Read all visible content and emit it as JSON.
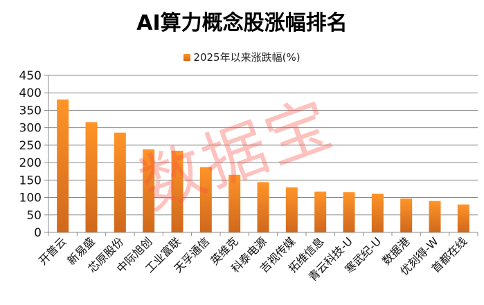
{
  "chart_data": {
    "type": "bar",
    "title": "AI算力概念股涨幅排名",
    "legend": "2025年以来涨跌幅(%)",
    "legend_position": "top",
    "categories": [
      "开普云",
      "新易盛",
      "芯原股份",
      "中际旭创",
      "工业富联",
      "天孚通信",
      "英维克",
      "科泰电源",
      "吉视传媒",
      "拓维信息",
      "青云科技-U",
      "寒武纪-U",
      "数据港",
      "优刻得-W",
      "首都在线"
    ],
    "series": [
      {
        "name": "2025年以来涨跌幅(%)",
        "values": [
          381,
          316,
          286,
          238,
          234,
          187,
          165,
          144,
          129,
          117,
          115,
          111,
          97,
          90,
          80
        ]
      }
    ],
    "ylim": [
      0,
      450
    ],
    "yticks": [
      0,
      50,
      100,
      150,
      200,
      250,
      300,
      350,
      400,
      450
    ],
    "grid": true,
    "bar_color": "#f28c28"
  },
  "watermark": "数据宝"
}
